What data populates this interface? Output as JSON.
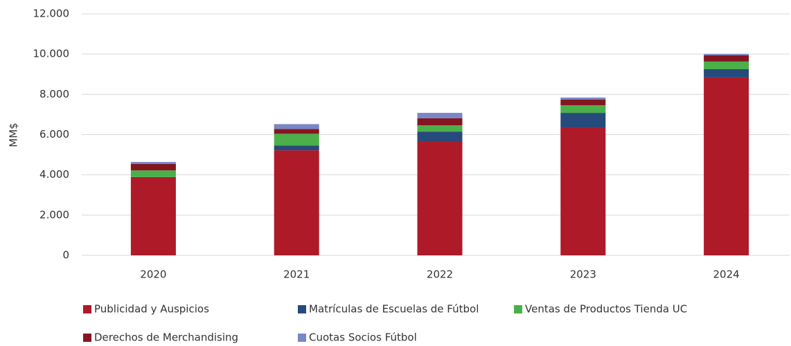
{
  "chart_data": {
    "type": "stacked-bar",
    "y_label": "MM$",
    "categories": [
      "2020",
      "2021",
      "2022",
      "2023",
      "2024"
    ],
    "series": [
      {
        "name": "Publicidad y Auspicios",
        "color": "#ae1a27",
        "values": [
          3850,
          5220,
          5640,
          6360,
          8840
        ]
      },
      {
        "name": "Matrículas de Escuelas de Fútbol",
        "color": "#264a7c",
        "values": [
          40,
          240,
          510,
          720,
          410
        ]
      },
      {
        "name": "Ventas de Productos Tienda UC",
        "color": "#4bb04a",
        "values": [
          330,
          580,
          310,
          380,
          380
        ]
      },
      {
        "name": "Derechos de Merchandising",
        "color": "#841620",
        "values": [
          320,
          240,
          350,
          280,
          310
        ]
      },
      {
        "name": "Cuotas Socios Fútbol",
        "color": "#7a86c6",
        "values": [
          100,
          240,
          270,
          100,
          70
        ]
      }
    ],
    "ylim": [
      0,
      12000
    ],
    "yticks": [
      0,
      {
        "value": 2000,
        "label": "2.000"
      },
      {
        "value": 4000,
        "label": "4.000"
      },
      {
        "value": 6000,
        "label": "6.000"
      },
      {
        "value": 8000,
        "label": "8.000"
      },
      {
        "value": 10000,
        "label": "10.000"
      },
      {
        "value": 12000,
        "label": "12.000"
      }
    ],
    "grid": true
  }
}
